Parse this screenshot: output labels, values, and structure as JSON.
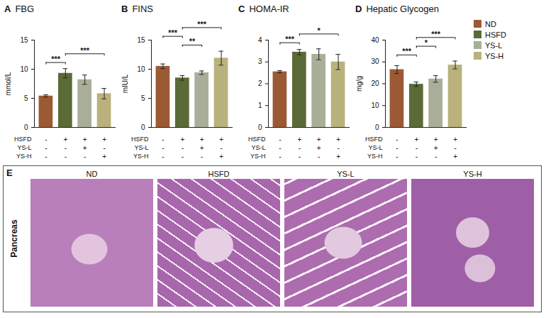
{
  "chart_data": [
    {
      "panel": "A",
      "type": "bar",
      "title": "FBG",
      "y_label": "mmol/L",
      "categories": [
        "ND",
        "HSFD",
        "YS-L",
        "YS-H"
      ],
      "values": [
        5.4,
        9.3,
        8.2,
        5.8
      ],
      "errors": [
        0.2,
        0.8,
        0.8,
        0.9
      ],
      "colors": [
        "#9c5a34",
        "#5b6b37",
        "#a9ae98",
        "#b9b27c"
      ],
      "ylim": [
        0,
        15
      ],
      "yticks": [
        0,
        5,
        10,
        15
      ],
      "tick_labels": "y",
      "significance": [
        {
          "pair": [
            0,
            1
          ],
          "label": "***"
        },
        {
          "pair": [
            1,
            3
          ],
          "label": "***"
        }
      ],
      "treatment_table": [
        {
          "label": "HSFD",
          "marks": [
            "-",
            "+",
            "+",
            "+"
          ]
        },
        {
          "label": "YS-L",
          "marks": [
            "-",
            "-",
            "+",
            "-"
          ]
        },
        {
          "label": "YS-H",
          "marks": [
            "-",
            "-",
            "-",
            "+"
          ]
        }
      ]
    },
    {
      "panel": "B",
      "type": "bar",
      "title": "FINS",
      "y_label": "mIU/L",
      "categories": [
        "ND",
        "HSFD",
        "YS-L",
        "YS-H"
      ],
      "values": [
        10.5,
        8.5,
        9.4,
        11.9
      ],
      "errors": [
        0.4,
        0.4,
        0.3,
        1.2
      ],
      "colors": [
        "#9c5a34",
        "#5b6b37",
        "#a9ae98",
        "#b9b27c"
      ],
      "ylim": [
        0,
        15
      ],
      "yticks": [
        0,
        5,
        10,
        15
      ],
      "tick_labels": "y",
      "significance": [
        {
          "pair": [
            1,
            2
          ],
          "label": "**"
        },
        {
          "pair": [
            0,
            1
          ],
          "label": "***"
        },
        {
          "pair": [
            1,
            3
          ],
          "label": "***"
        }
      ],
      "treatment_table": [
        {
          "label": "HSFD",
          "marks": [
            "-",
            "+",
            "+",
            "+"
          ]
        },
        {
          "label": "YS-L",
          "marks": [
            "-",
            "-",
            "+",
            "-"
          ]
        },
        {
          "label": "YS-H",
          "marks": [
            "-",
            "-",
            "-",
            "+"
          ]
        }
      ]
    },
    {
      "panel": "C",
      "type": "bar",
      "title": "HOMA-IR",
      "categories": [
        "ND",
        "HSFD",
        "YS-L",
        "YS-H"
      ],
      "values": [
        2.55,
        3.45,
        3.35,
        3.0
      ],
      "errors": [
        0.05,
        0.12,
        0.25,
        0.35
      ],
      "colors": [
        "#9c5a34",
        "#5b6b37",
        "#a9ae98",
        "#b9b27c"
      ],
      "ylim": [
        0,
        4
      ],
      "yticks": [
        0,
        1,
        2,
        3,
        4
      ],
      "tick_labels": "y",
      "significance": [
        {
          "pair": [
            0,
            1
          ],
          "label": "***"
        },
        {
          "pair": [
            1,
            3
          ],
          "label": "*"
        }
      ],
      "treatment_table": [
        {
          "label": "HSFD",
          "marks": [
            "-",
            "+",
            "+",
            "+"
          ]
        },
        {
          "label": "YS-L",
          "marks": [
            "-",
            "-",
            "+",
            "-"
          ]
        },
        {
          "label": "YS-H",
          "marks": [
            "-",
            "-",
            "-",
            "+"
          ]
        }
      ]
    },
    {
      "panel": "D",
      "type": "bar",
      "title": "Hepatic Glycogen",
      "y_label": "mg/g",
      "categories": [
        "ND",
        "HSFD",
        "YS-L",
        "YS-H"
      ],
      "values": [
        26.5,
        19.8,
        22.2,
        28.6
      ],
      "errors": [
        1.8,
        1.0,
        1.5,
        1.8
      ],
      "colors": [
        "#9c5a34",
        "#5b6b37",
        "#a9ae98",
        "#b9b27c"
      ],
      "ylim": [
        0,
        40
      ],
      "yticks": [
        0,
        10,
        20,
        30,
        40
      ],
      "tick_labels": "y",
      "legend": "right",
      "significance": [
        {
          "pair": [
            0,
            1
          ],
          "label": "***"
        },
        {
          "pair": [
            1,
            2
          ],
          "label": "*"
        },
        {
          "pair": [
            1,
            3
          ],
          "label": "***"
        }
      ],
      "treatment_table": [
        {
          "label": "HSFD",
          "marks": [
            "-",
            "+",
            "+",
            "+"
          ]
        },
        {
          "label": "YS-L",
          "marks": [
            "-",
            "-",
            "+",
            "-"
          ]
        },
        {
          "label": "YS-H",
          "marks": [
            "-",
            "-",
            "-",
            "+"
          ]
        }
      ]
    }
  ],
  "panel_e": {
    "panel": "E",
    "row_label": "Pancreas",
    "images": [
      "ND",
      "HSFD",
      "YS-L",
      "YS-H"
    ]
  }
}
